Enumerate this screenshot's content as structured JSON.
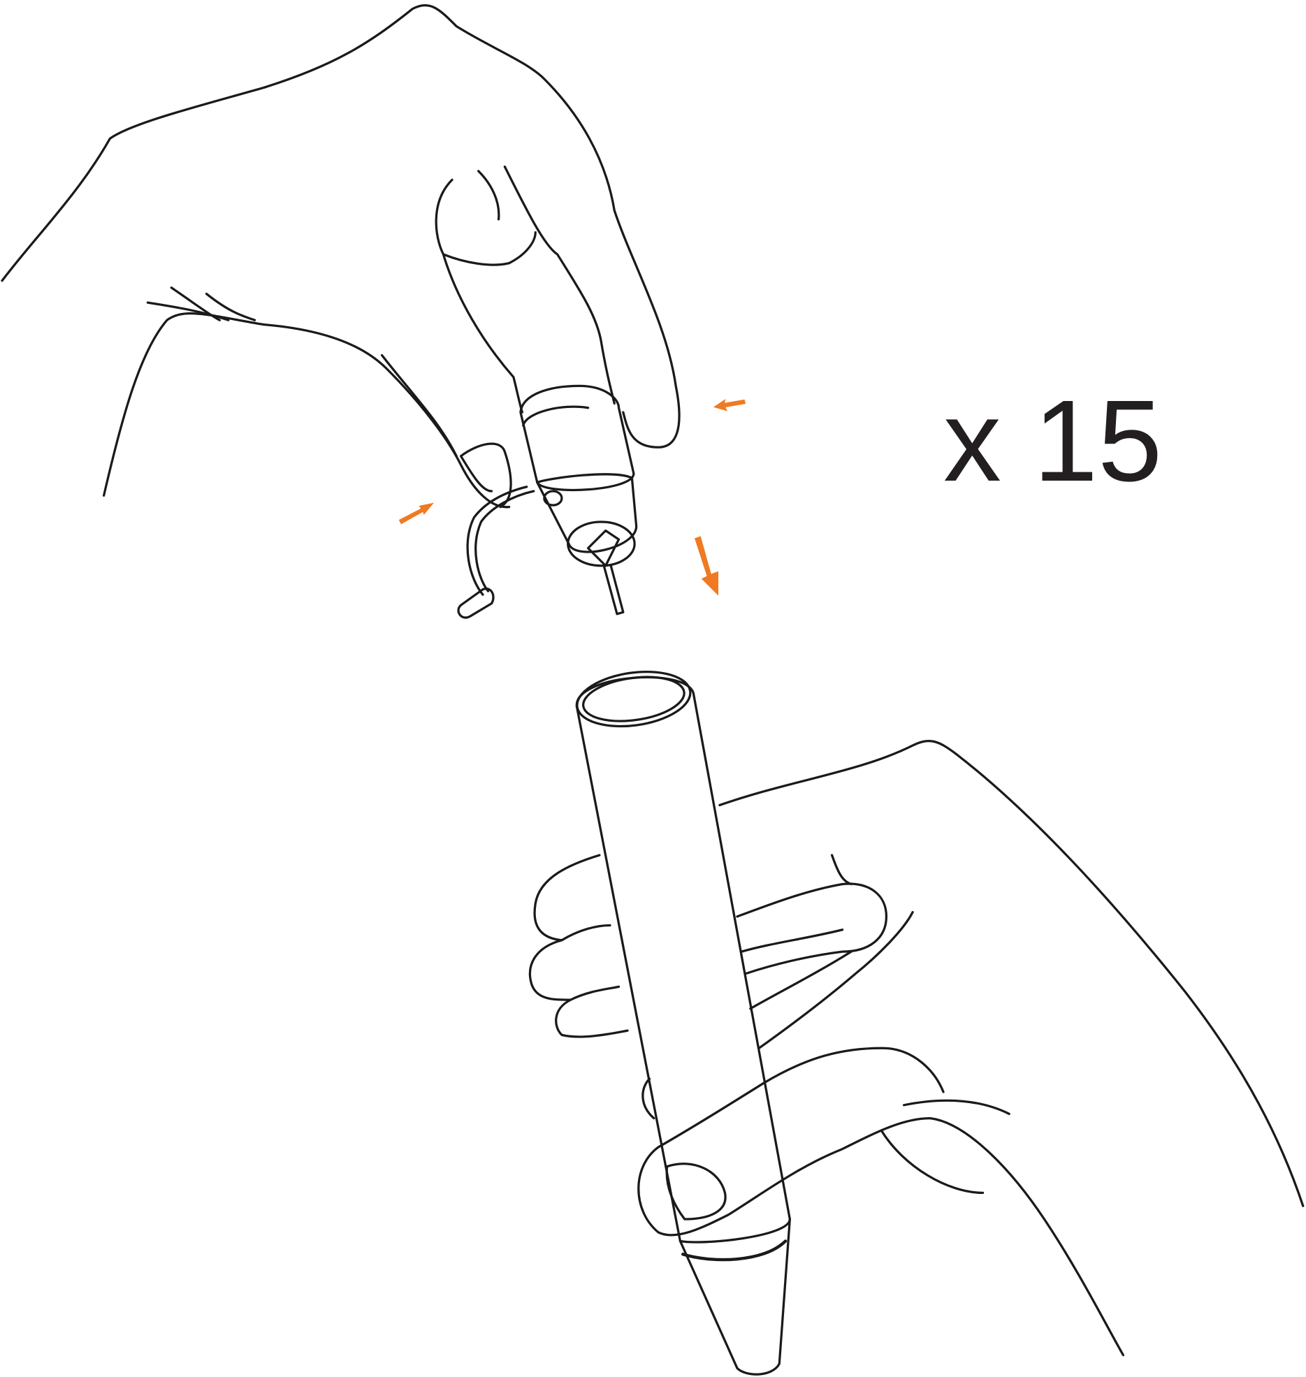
{
  "label": "x 15"
}
